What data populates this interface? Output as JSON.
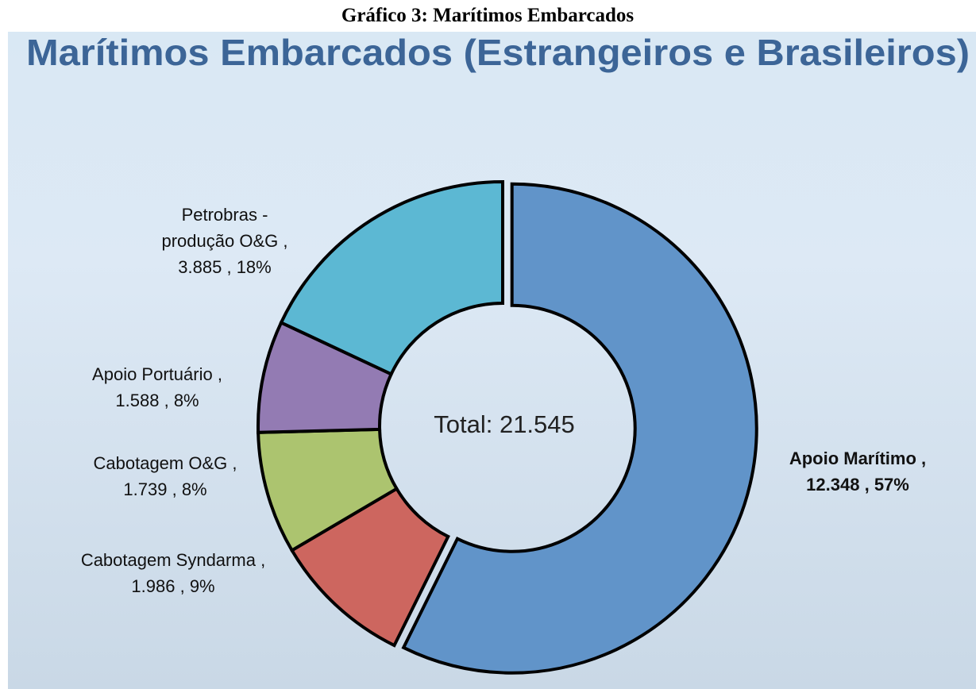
{
  "caption": "Gráfico 3: Marítimos Embarcados",
  "chart_data": {
    "type": "donut",
    "title": "Marítimos Embarcados (Estrangeiros e Brasileiros)",
    "categories": [
      "Apoio Marítimo",
      "Cabotagem Syndarma",
      "Cabotagem O&G",
      "Apoio Portuário",
      "Petrobras - produção O&G"
    ],
    "values": [
      12348,
      1986,
      1739,
      1588,
      3885
    ],
    "value_labels": [
      "12.348",
      "1.986",
      "1.739",
      "1.588",
      "3.885"
    ],
    "percents": [
      57,
      9,
      8,
      8,
      18
    ],
    "percent_labels": [
      "57%",
      "9%",
      "8%",
      "8%",
      "18%"
    ],
    "separator": ",",
    "colors": [
      "#6194c9",
      "#cd665f",
      "#acc46f",
      "#937bb3",
      "#5cb8d3"
    ],
    "center_text": "Total:",
    "total": 21545,
    "total_label": "21.545"
  }
}
